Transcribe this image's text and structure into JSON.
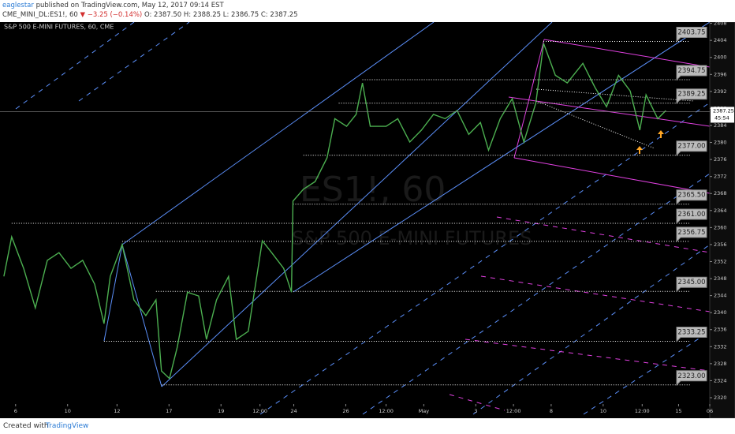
{
  "header": {
    "author": "eaglestar",
    "published": "published on TradingView.com, May 12, 2017 09:14 EST",
    "symbol": "CME_MINI_DL:ES1!, 60",
    "change": "▼ −3.25 (−0.14%)",
    "ohlc": "O: 2387.50 H: 2388.25 L: 2386.75 C: 2387.25"
  },
  "footer": {
    "created": "Created with",
    "brand": "TradingView"
  },
  "chart_data": {
    "type": "line",
    "title": "S&P 500 E-MINI FUTURES, 60, CME",
    "watermark": "ES1!, 60",
    "subtitle": "S&P 500 E-MINI FUTURES",
    "color": "#4caf50",
    "x": [
      0.15,
      0.45,
      0.91,
      1.36,
      1.82,
      2.27,
      2.73,
      3.18,
      3.64,
      4,
      4.24,
      4.7,
      5.15,
      5.61,
      6,
      6.21,
      6.52,
      6.82,
      7.21,
      7.64,
      7.94,
      8.33,
      8.79,
      9.09,
      9.55,
      10.09,
      10.45,
      10.91,
      11.21,
      11.27,
      11.67,
      12.12,
      12.58,
      12.88,
      13.33,
      13.7,
      13.94,
      14.24,
      14.85,
      15.3,
      15.76,
      16.21,
      16.67,
      17.12,
      17.58,
      18.03,
      18.48,
      18.79,
      19.24,
      19.7,
      20.15,
      20.61,
      20.91,
      21.36,
      21.82,
      22.42,
      22.88,
      23.33,
      23.79,
      24.24,
      24.61,
      24.85,
      25.3,
      25.61
    ],
    "values": [
      2348.5,
      2357.8,
      2350.4,
      2341.1,
      2352.3,
      2354.1,
      2350.4,
      2352.3,
      2346.7,
      2337.4,
      2348.5,
      2356,
      2343,
      2339.3,
      2343,
      2326.3,
      2324.5,
      2331.9,
      2344.8,
      2343.9,
      2333.7,
      2343,
      2348.5,
      2333.7,
      2335.6,
      2356.9,
      2354.1,
      2350.4,
      2344.8,
      2366.2,
      2369,
      2370.8,
      2376.4,
      2385.6,
      2383.8,
      2386.6,
      2394,
      2383.8,
      2383.8,
      2385.6,
      2380.1,
      2382.9,
      2386.6,
      2385.6,
      2387.5,
      2381.9,
      2384.7,
      2378.2,
      2385.6,
      2390.3,
      2380.1,
      2389.3,
      2403.3,
      2395.8,
      2394,
      2398.6,
      2393,
      2388.4,
      2395.8,
      2392.1,
      2382.9,
      2391.2,
      2385.6,
      2387.5
    ],
    "xlim": [
      0,
      27.3
    ],
    "ylim": [
      2316.1,
      2408.3
    ],
    "xticks": [
      {
        "value": 0.6,
        "label": "6"
      },
      {
        "value": 2.6,
        "label": "10"
      },
      {
        "value": 4.5,
        "label": "12"
      },
      {
        "value": 6.5,
        "label": "17"
      },
      {
        "value": 8.5,
        "label": "19"
      },
      {
        "value": 10,
        "label": "12:00"
      },
      {
        "value": 11.3,
        "label": "24"
      },
      {
        "value": 13.3,
        "label": "26"
      },
      {
        "value": 14.85,
        "label": "12:00"
      },
      {
        "value": 16.3,
        "label": "May"
      },
      {
        "value": 18.3,
        "label": "3"
      },
      {
        "value": 19.75,
        "label": "12:00"
      },
      {
        "value": 21.2,
        "label": "8"
      },
      {
        "value": 23.2,
        "label": "10"
      },
      {
        "value": 24.7,
        "label": "12:00"
      },
      {
        "value": 26.1,
        "label": "15"
      },
      {
        "value": 27.3,
        "label": "06"
      }
    ],
    "yticks": [
      2320,
      2324,
      2328,
      2332,
      2336,
      2340,
      2344,
      2348,
      2352,
      2356,
      2360,
      2364,
      2368,
      2372,
      2376,
      2380,
      2384,
      2388,
      2392,
      2396,
      2400,
      2404,
      2408
    ],
    "levels": [
      {
        "value": 2403.75,
        "label": "2403.75",
        "from": 20.9
      },
      {
        "value": 2394.75,
        "label": "2394.75",
        "from": 13.94
      },
      {
        "value": 2389.25,
        "label": "2389.25",
        "from": 13.03
      },
      {
        "value": 2377,
        "label": "2377.00",
        "from": 11.67
      },
      {
        "value": 2365.5,
        "label": "2365.50",
        "from": 11.27
      },
      {
        "value": 2361,
        "label": "2361.00",
        "from": 0.45
      },
      {
        "value": 2356.75,
        "label": "2356.75",
        "from": 4.7
      },
      {
        "value": 2345,
        "label": "2345.00",
        "from": 6
      },
      {
        "value": 2333.25,
        "label": "2333.25",
        "from": 4
      },
      {
        "value": 2323,
        "label": "2323.00",
        "from": 6.21
      }
    ],
    "current": {
      "value": 2387.25,
      "label": "2387.25",
      "countdown": "45:54"
    }
  }
}
